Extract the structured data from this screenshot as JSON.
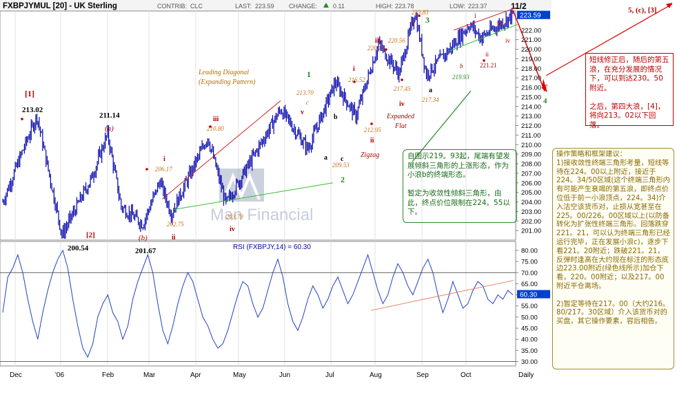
{
  "header": {
    "symbol": "FXBPJYMUL [20] - UK Sterling",
    "contrib_label": "CONTRIB:",
    "contrib_value": "CLC",
    "last_label": "LAST:",
    "last_value": "223.59",
    "change_label": "CHANGE:",
    "change_value": "0.11",
    "high_label": "HIGH:",
    "high_value": "223.78",
    "low_label": "LOW:",
    "low_value": "223.37",
    "date_label": "11/2"
  },
  "colors": {
    "price": "#0000aa",
    "wave_red": "#b00000",
    "wave_orange": "#c87010",
    "wave_green": "#228822",
    "rsi_line": "#2040c0",
    "trend_orange": "#e08060",
    "current_box": "#0040d0"
  },
  "watermark": "Man Financial",
  "chart_data": [
    {
      "type": "line",
      "title": "FXBPJYMUL [20] - UK Sterling",
      "ylim": [
        200,
        224
      ],
      "yticks": [
        201,
        202,
        203,
        204,
        205,
        206,
        207,
        208,
        209,
        210,
        211,
        212,
        213,
        214,
        215,
        216,
        217,
        218,
        219,
        220,
        221,
        222
      ],
      "ytick_labels": [
        "201.00",
        "202.00",
        "203.00",
        "204.00",
        "205.00",
        "206.00",
        "207.00",
        "208.00",
        "209.00",
        "210.00",
        "211.00",
        "212.00",
        "213.00",
        "214.00",
        "215.00",
        "216.00",
        "217.00",
        "218.00",
        "219.00",
        "220.00",
        "221.00",
        "222.00"
      ],
      "current_value": "223.59",
      "x_months": [
        "Dec",
        "'06",
        "Feb",
        "Mar",
        "Apr",
        "May",
        "Jun",
        "Jul",
        "Aug",
        "Sep",
        "Oct"
      ],
      "x_extra": "Daily",
      "key_points": [
        {
          "t": 0,
          "v": 204.0
        },
        {
          "t": 18,
          "v": 209.5
        },
        {
          "t": 30,
          "v": 213.02
        },
        {
          "t": 52,
          "v": 200.54
        },
        {
          "t": 78,
          "v": 206.5
        },
        {
          "t": 92,
          "v": 211.14
        },
        {
          "t": 104,
          "v": 203.5
        },
        {
          "t": 123,
          "v": 201.67
        },
        {
          "t": 138,
          "v": 206.17
        },
        {
          "t": 148,
          "v": 202.75
        },
        {
          "t": 180,
          "v": 210.8
        },
        {
          "t": 196,
          "v": 203.79
        },
        {
          "t": 244,
          "v": 213.7
        },
        {
          "t": 268,
          "v": 209.53
        },
        {
          "t": 292,
          "v": 216.52
        },
        {
          "t": 310,
          "v": 212.95
        },
        {
          "t": 330,
          "v": 220.56
        },
        {
          "t": 348,
          "v": 217.45
        },
        {
          "t": 362,
          "v": 223.83
        },
        {
          "t": 372,
          "v": 217.34
        },
        {
          "t": 392,
          "v": 219.93
        },
        {
          "t": 410,
          "v": 222.6
        },
        {
          "t": 420,
          "v": 221.21
        },
        {
          "t": 448,
          "v": 223.59
        }
      ],
      "price_labels": [
        "213.02",
        "200.54",
        "211.14",
        "201.67",
        "206.17",
        "202.75",
        "210.80",
        "203.79",
        "213.70",
        "209.53",
        "216.52",
        "212.95",
        "220.13",
        "220.56",
        "217.45",
        "223.83",
        "217.34",
        "219.93",
        "221.21"
      ],
      "wave_labels": [
        "[1]",
        "[2]",
        "(a)",
        "(b)",
        "i",
        "ii",
        "iii",
        "iv",
        "v",
        "a",
        "b",
        "c",
        "1",
        "2",
        "3",
        "i",
        "ii",
        "iii",
        "iv",
        "v",
        "a",
        "b",
        "c",
        "e",
        "4",
        "i",
        "ii",
        "iii",
        "iv",
        "5, (c), [3]"
      ],
      "annotations": [
        "Leading Diagonal",
        "(Expanding Pattern)",
        "Zigzag",
        "Expanded",
        "Flat"
      ]
    },
    {
      "type": "line",
      "title": "RSI (FXBPJY,14) = 60.30",
      "ylim": [
        28,
        84
      ],
      "yticks": [
        30,
        35,
        40,
        45,
        50,
        55,
        60,
        65,
        70,
        75,
        80
      ],
      "ytick_labels": [
        "30.00",
        "35.00",
        "40.00",
        "45.00",
        "50.00",
        "55.00",
        "60.00",
        "65.00",
        "70.00",
        "75.00",
        "80.00"
      ],
      "reference_lines": [
        70,
        30
      ],
      "current_value": "60.30",
      "values": [
        52,
        68,
        72,
        78,
        70,
        58,
        48,
        40,
        52,
        62,
        70,
        76,
        80,
        72,
        58,
        46,
        36,
        32,
        38,
        50,
        56,
        60,
        52,
        48,
        40,
        46,
        58,
        66,
        72,
        78,
        70,
        56,
        44,
        38,
        46,
        56,
        64,
        70,
        66,
        58,
        50,
        46,
        40,
        36,
        38,
        44,
        52,
        60,
        66,
        64,
        56,
        50,
        54,
        62,
        70,
        76,
        68,
        56,
        48,
        44,
        50,
        58,
        64,
        60,
        54,
        58,
        64,
        68,
        62,
        56,
        60,
        66,
        72,
        78,
        70,
        62,
        56,
        60,
        68,
        74,
        70,
        64,
        60,
        66,
        72,
        76,
        70,
        60,
        52,
        58,
        66,
        60,
        54,
        56,
        62,
        66,
        64,
        58,
        56,
        60,
        58,
        62,
        60
      ]
    }
  ],
  "notes": {
    "top": "短线修正后，随后的第五浪，在充分发展的情况下，可以到达230。50附近。\n\n之后，第四大浪，[4]，将向213。02以下回落。",
    "mid": "自图示219。93起，尾端有望发展倾斜三角形的上涨形态，作为小浪b的终端形态。\n\n暂定为收敛性倾斜三角形，由此，终点价位限制在224。55以下。",
    "right": "操作策略和框架建议：\n1)接收敛性终端三角形考量，短线等待在224。00以上附近，接近于224。34/50区域(这个终端三角形内有可能产生衰竭的第五浪，即终点价位低于前一小浪顶点，224。34)介入沽空该货币对，止损从宽甚至在225。00/226。00区域以上(以防备转化为扩张性终端三角形。回落跌穿221。21，可以认为终端三角形已经运行完毕，正在发展小浪c)，逐步下看221。20附近；跌破221。21，反弹时逢高在大约现在标注的形态底边223.00附近(绿色线所示)加仓下看，220。00附近；以及217。00附近平仓离场。\n\n2)暂定等待在217。00（大约216。80/217。30区域）介入该货币对的买盘，其它操作要素，容后相告。"
  }
}
